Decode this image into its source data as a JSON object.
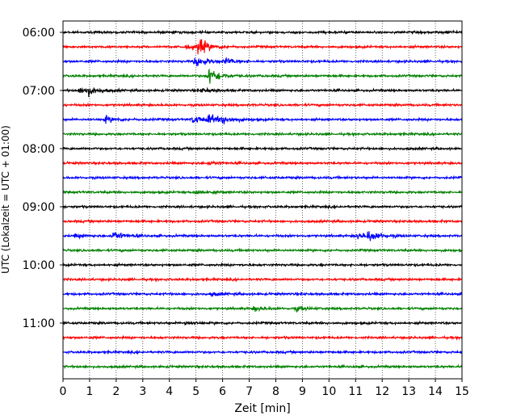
{
  "chart_data": {
    "type": "line",
    "title": "",
    "xlabel": "Zeit  [min]",
    "ylabel": "UTC (Lokalzeit = UTC + 01:00)",
    "xlim": [
      0,
      15
    ],
    "x_ticks": [
      "0",
      "1",
      "2",
      "3",
      "4",
      "5",
      "6",
      "7",
      "8",
      "9",
      "10",
      "11",
      "12",
      "13",
      "14",
      "15"
    ],
    "y_ticks": [
      "06:00",
      "07:00",
      "08:00",
      "09:00",
      "10:00",
      "11:00"
    ],
    "grid": "vertical-dotted",
    "colors": [
      "#000000",
      "#ff0000",
      "#0000ff",
      "#008000"
    ],
    "trace_interval_min": 15,
    "traces": [
      {
        "start": "06:00",
        "color": "#000000",
        "events": [
          {
            "t": 14.4,
            "amp": 0.25
          }
        ]
      },
      {
        "start": "06:15",
        "color": "#ff0000",
        "events": [
          {
            "t": 5.1,
            "amp": 1.6
          },
          {
            "t": 4.7,
            "amp": 0.5
          }
        ]
      },
      {
        "start": "06:30",
        "color": "#0000ff",
        "events": [
          {
            "t": 5.0,
            "amp": 1.2
          },
          {
            "t": 6.1,
            "amp": 0.6
          }
        ]
      },
      {
        "start": "06:45",
        "color": "#008000",
        "events": [
          {
            "t": 5.5,
            "amp": 1.8
          }
        ]
      },
      {
        "start": "07:00",
        "color": "#000000",
        "events": [
          {
            "t": 0.9,
            "amp": 0.8
          },
          {
            "t": 0.6,
            "amp": 0.5
          },
          {
            "t": 5.2,
            "amp": 0.4
          }
        ]
      },
      {
        "start": "07:15",
        "color": "#ff0000",
        "events": []
      },
      {
        "start": "07:30",
        "color": "#0000ff",
        "events": [
          {
            "t": 1.6,
            "amp": 0.6
          },
          {
            "t": 4.9,
            "amp": 0.8
          },
          {
            "t": 5.5,
            "amp": 0.9
          },
          {
            "t": 6.0,
            "amp": 0.7
          }
        ]
      },
      {
        "start": "07:45",
        "color": "#008000",
        "events": []
      },
      {
        "start": "08:00",
        "color": "#000000",
        "events": []
      },
      {
        "start": "08:15",
        "color": "#ff0000",
        "events": [
          {
            "t": 5.5,
            "amp": 0.3
          }
        ]
      },
      {
        "start": "08:30",
        "color": "#0000ff",
        "events": []
      },
      {
        "start": "08:45",
        "color": "#008000",
        "events": [
          {
            "t": 5.0,
            "amp": 0.5
          }
        ]
      },
      {
        "start": "09:00",
        "color": "#000000",
        "events": []
      },
      {
        "start": "09:15",
        "color": "#ff0000",
        "events": []
      },
      {
        "start": "09:30",
        "color": "#0000ff",
        "events": [
          {
            "t": 1.9,
            "amp": 0.9
          },
          {
            "t": 11.5,
            "amp": 1.0
          },
          {
            "t": 11.1,
            "amp": 0.6
          },
          {
            "t": 0.5,
            "amp": 0.3
          }
        ]
      },
      {
        "start": "09:45",
        "color": "#008000",
        "events": []
      },
      {
        "start": "10:00",
        "color": "#000000",
        "events": []
      },
      {
        "start": "10:15",
        "color": "#ff0000",
        "events": []
      },
      {
        "start": "10:30",
        "color": "#0000ff",
        "events": [
          {
            "t": 5.6,
            "amp": 0.3
          }
        ]
      },
      {
        "start": "10:45",
        "color": "#008000",
        "events": [
          {
            "t": 7.2,
            "amp": 0.4
          },
          {
            "t": 8.8,
            "amp": 0.4
          }
        ]
      },
      {
        "start": "11:00",
        "color": "#000000",
        "events": [
          {
            "t": 4.6,
            "amp": 0.3
          }
        ]
      },
      {
        "start": "11:15",
        "color": "#ff0000",
        "events": []
      },
      {
        "start": "11:30",
        "color": "#0000ff",
        "events": []
      },
      {
        "start": "11:45",
        "color": "#008000",
        "events": []
      }
    ]
  }
}
